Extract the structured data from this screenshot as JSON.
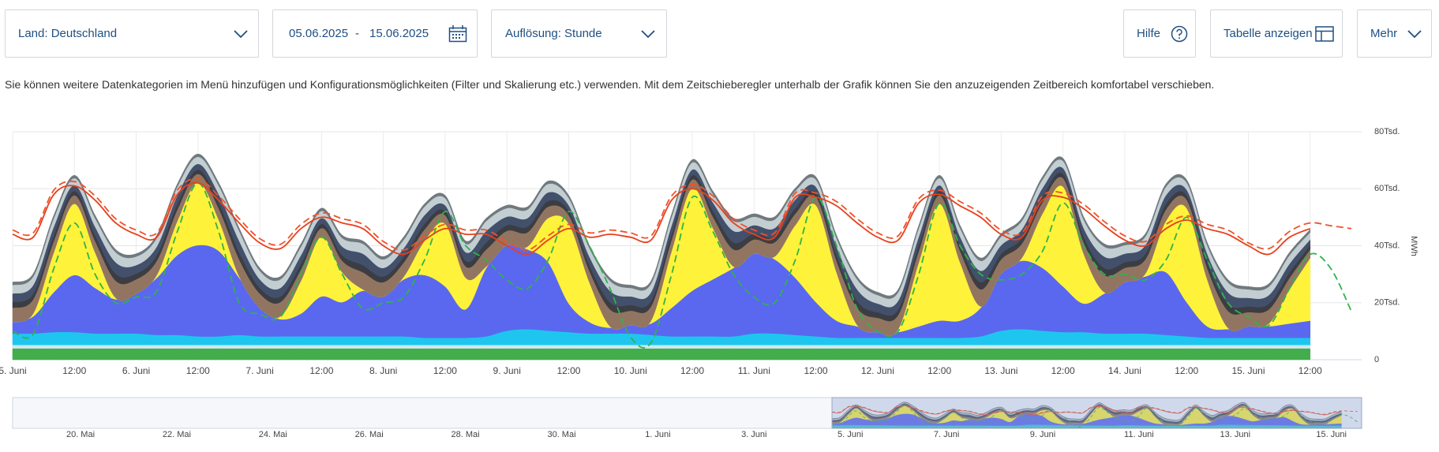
{
  "controls": {
    "country": "Land: Deutschland",
    "date_from": "05.06.2025",
    "date_separator": "-",
    "date_to": "15.06.2025",
    "resolution": "Auflösung: Stunde",
    "help": "Hilfe",
    "table": "Tabelle anzeigen",
    "more": "Mehr"
  },
  "description": "Sie können weitere Datenkategorien im Menü hinzufügen und Konfigurationsmöglichkeiten (Filter und Skalierung etc.) verwenden. Mit dem Zeitschieberegler unterhalb der Grafik können Sie den anzuzeigenden Zeitbereich komfortabel verschieben.",
  "chart_data": {
    "type": "area",
    "stacked": true,
    "grid": true,
    "y_label": "MWh",
    "xlim": [
      0,
      262
    ],
    "ylim": [
      0,
      80000
    ],
    "yticks": [
      0,
      {
        "value": 20000,
        "label": "20Tsd."
      },
      {
        "value": 40000,
        "label": "40Tsd."
      },
      {
        "value": 60000,
        "label": "60Tsd."
      },
      {
        "value": 80000,
        "label": "80Tsd."
      }
    ],
    "xticks": [
      {
        "value": 0,
        "label": "5. Juni"
      },
      {
        "value": 12,
        "label": "12:00"
      },
      {
        "value": 24,
        "label": "6. Juni"
      },
      {
        "value": 36,
        "label": "12:00"
      },
      {
        "value": 48,
        "label": "7. Juni"
      },
      {
        "value": 60,
        "label": "12:00"
      },
      {
        "value": 72,
        "label": "8. Juni"
      },
      {
        "value": 84,
        "label": "12:00"
      },
      {
        "value": 96,
        "label": "9. Juni"
      },
      {
        "value": 108,
        "label": "12:00"
      },
      {
        "value": 120,
        "label": "10. Juni"
      },
      {
        "value": 132,
        "label": "12:00"
      },
      {
        "value": 144,
        "label": "11. Juni"
      },
      {
        "value": 156,
        "label": "12:00"
      },
      {
        "value": 168,
        "label": "12. Juni"
      },
      {
        "value": 180,
        "label": "12:00"
      },
      {
        "value": 192,
        "label": "13. Juni"
      },
      {
        "value": 204,
        "label": "12:00"
      },
      {
        "value": 216,
        "label": "14. Juni"
      },
      {
        "value": 228,
        "label": "12:00"
      },
      {
        "value": 240,
        "label": "15. Juni"
      },
      {
        "value": 252,
        "label": "12:00"
      }
    ],
    "x": [
      0,
      4,
      8,
      12,
      16,
      20,
      24,
      28,
      32,
      36,
      40,
      44,
      48,
      52,
      56,
      60,
      64,
      68,
      72,
      76,
      80,
      84,
      88,
      92,
      96,
      100,
      104,
      108,
      112,
      116,
      120,
      124,
      128,
      132,
      136,
      140,
      144,
      148,
      152,
      156,
      160,
      164,
      168,
      172,
      176,
      180,
      184,
      188,
      192,
      196,
      200,
      204,
      208,
      212,
      216,
      220,
      224,
      228,
      232,
      236,
      240,
      244,
      248,
      252,
      256,
      260
    ],
    "series": [
      {
        "color": "#43ad4b",
        "values": [
          4000,
          4000,
          4000,
          4000,
          4000,
          4000,
          4000,
          4000,
          4000,
          4000,
          4000,
          4000,
          4000,
          4000,
          4000,
          4000,
          4000,
          4000,
          4000,
          4000,
          4000,
          4000,
          4000,
          4000,
          4000,
          4000,
          4000,
          4000,
          4000,
          4000,
          4000,
          4000,
          4000,
          4000,
          4000,
          4000,
          4000,
          4000,
          4000,
          4000,
          4000,
          4000,
          4000,
          4000,
          4000,
          4000,
          4000,
          4000,
          4000,
          4000,
          4000,
          4000,
          4000,
          4000,
          4000,
          4000,
          4000,
          4000,
          4000,
          4000,
          4000,
          4000,
          4000,
          4000,
          null,
          null
        ]
      },
      {
        "color": "#cfe7ef",
        "values": [
          1200,
          1200,
          1200,
          1200,
          1200,
          1200,
          1200,
          1200,
          1200,
          1200,
          1200,
          1200,
          1200,
          1200,
          1200,
          1200,
          1200,
          1200,
          1200,
          1200,
          1200,
          1200,
          1200,
          1200,
          1200,
          1200,
          1200,
          1200,
          1200,
          1200,
          1200,
          1200,
          1200,
          1200,
          1200,
          1200,
          1200,
          1200,
          1200,
          1200,
          1200,
          1200,
          1200,
          1200,
          1200,
          1200,
          1200,
          1200,
          1200,
          1200,
          1200,
          1200,
          1200,
          1200,
          1200,
          1200,
          1200,
          1200,
          1200,
          1200,
          1200,
          1200,
          1200,
          1200,
          null,
          null
        ]
      },
      {
        "color": "#1ec6ef",
        "values": [
          4000,
          4000,
          4500,
          4500,
          4000,
          4000,
          4000,
          3500,
          3500,
          3000,
          3000,
          3500,
          3000,
          3000,
          3000,
          3000,
          3000,
          3000,
          3000,
          3000,
          2500,
          2500,
          2500,
          3000,
          5000,
          5500,
          5000,
          4500,
          4000,
          4000,
          4000,
          3500,
          3000,
          3000,
          3000,
          3000,
          4000,
          4000,
          3500,
          3000,
          2500,
          2500,
          2500,
          2500,
          2500,
          2500,
          2500,
          3000,
          5000,
          5500,
          5000,
          4500,
          4500,
          4000,
          4000,
          4000,
          3500,
          3000,
          2500,
          2500,
          2500,
          2500,
          2500,
          2500,
          null,
          null
        ]
      },
      {
        "color": "#5a68ef",
        "values": [
          4000,
          6000,
          14000,
          20000,
          16000,
          12000,
          14000,
          20000,
          28000,
          32000,
          30000,
          20000,
          10000,
          6000,
          8000,
          14000,
          12000,
          16000,
          14000,
          20000,
          22000,
          18000,
          10000,
          24000,
          30000,
          28000,
          24000,
          10000,
          4000,
          2000,
          3000,
          4000,
          10000,
          16000,
          20000,
          24000,
          28000,
          26000,
          20000,
          12000,
          6000,
          4000,
          2000,
          2000,
          4000,
          6000,
          6000,
          10000,
          20000,
          24000,
          22000,
          16000,
          10000,
          14000,
          18000,
          20000,
          22000,
          12000,
          4000,
          3000,
          4000,
          4000,
          5000,
          6000,
          null,
          null
        ]
      },
      {
        "color": "#fff23a",
        "values": [
          0,
          1000,
          14000,
          25000,
          12500,
          500,
          0,
          1000,
          12000,
          22000,
          11000,
          500,
          0,
          1000,
          11500,
          21000,
          10500,
          500,
          0,
          1000,
          12000,
          22000,
          11000,
          500,
          0,
          1000,
          15500,
          28000,
          14000,
          500,
          0,
          1000,
          20000,
          36000,
          18000,
          500,
          0,
          1000,
          18500,
          34000,
          17000,
          500,
          0,
          1000,
          22500,
          41000,
          20500,
          500,
          0,
          1000,
          19000,
          35000,
          17500,
          500,
          0,
          1000,
          18000,
          33000,
          16500,
          500,
          0,
          1000,
          12000,
          22000,
          null,
          null
        ]
      },
      {
        "color": "#927561",
        "values": [
          5000,
          5000,
          4000,
          3000,
          4000,
          6000,
          5000,
          5000,
          4000,
          3000,
          4000,
          6000,
          5000,
          5000,
          4000,
          3000,
          4000,
          6000,
          5000,
          5000,
          4000,
          3000,
          4000,
          6000,
          5000,
          5000,
          4000,
          3000,
          4000,
          6000,
          5000,
          5000,
          4000,
          3000,
          4000,
          6000,
          5000,
          5000,
          4000,
          3000,
          4000,
          6000,
          5000,
          5000,
          4000,
          3000,
          4000,
          6000,
          5000,
          5000,
          4000,
          3000,
          4000,
          6000,
          5000,
          5000,
          4000,
          3000,
          4000,
          6000,
          5000,
          5000,
          4000,
          3000,
          null,
          null
        ]
      },
      {
        "color": "#3b3d42",
        "values": [
          2000,
          2000,
          2000,
          1500,
          2000,
          2500,
          2000,
          2000,
          2000,
          1500,
          2000,
          2500,
          2000,
          2000,
          2000,
          1500,
          2000,
          2500,
          2000,
          2000,
          2000,
          1500,
          2000,
          2500,
          2000,
          2000,
          2000,
          1500,
          2000,
          2500,
          2000,
          2000,
          2000,
          1500,
          2000,
          2500,
          2000,
          2000,
          2000,
          1500,
          2000,
          2500,
          2000,
          2000,
          2000,
          1500,
          2000,
          2500,
          2000,
          2000,
          2000,
          1500,
          2000,
          2500,
          2000,
          2000,
          2000,
          1500,
          2000,
          2500,
          2000,
          2000,
          2000,
          1500,
          null,
          null
        ]
      },
      {
        "color": "#43506b",
        "values": [
          3000,
          3000,
          3000,
          2000,
          3000,
          4000,
          3000,
          3000,
          3000,
          2000,
          3000,
          4000,
          3000,
          3000,
          3000,
          2000,
          3000,
          4000,
          3000,
          3000,
          3000,
          2000,
          3000,
          4000,
          3000,
          3000,
          3000,
          2000,
          3000,
          4000,
          3000,
          3000,
          3000,
          2000,
          3000,
          4000,
          3000,
          3000,
          3000,
          2000,
          3000,
          4000,
          3000,
          3000,
          3000,
          2000,
          3000,
          4000,
          3000,
          3000,
          3000,
          2000,
          3000,
          4000,
          3000,
          3000,
          3000,
          2000,
          3000,
          4000,
          3000,
          3000,
          3000,
          2000,
          null,
          null
        ]
      },
      {
        "color": "#c3ced3",
        "values": [
          3000,
          3000,
          3000,
          2500,
          3000,
          3500,
          3000,
          3000,
          3000,
          2500,
          3000,
          3500,
          3000,
          3000,
          3000,
          2500,
          3000,
          3500,
          3000,
          3000,
          3000,
          2500,
          3000,
          3500,
          3000,
          3000,
          3000,
          2500,
          3000,
          3500,
          3000,
          3000,
          3000,
          2500,
          3000,
          3500,
          3000,
          3000,
          3000,
          2500,
          3000,
          3500,
          3000,
          3000,
          3000,
          2500,
          3000,
          3500,
          3000,
          3000,
          3000,
          2500,
          3000,
          3500,
          3000,
          3000,
          3000,
          2500,
          3000,
          3500,
          3000,
          3000,
          3000,
          2500,
          null,
          null
        ]
      },
      {
        "color": "#6f797e",
        "values": [
          1000,
          1000,
          1000,
          1000,
          1000,
          1000,
          1000,
          1000,
          1000,
          1000,
          1000,
          1000,
          1000,
          1000,
          1000,
          1000,
          1000,
          1000,
          1000,
          1000,
          1000,
          1000,
          1000,
          1000,
          1000,
          1000,
          1000,
          1000,
          1000,
          1000,
          1000,
          1000,
          1000,
          1000,
          1000,
          1000,
          1000,
          1000,
          1000,
          1000,
          1000,
          1000,
          1000,
          1000,
          1000,
          1000,
          1000,
          1000,
          1000,
          1000,
          1000,
          1000,
          1000,
          1000,
          1000,
          1000,
          1000,
          1000,
          1000,
          1000,
          1000,
          1000,
          1000,
          1000,
          null,
          null
        ]
      },
      {
        "type": "line",
        "color": "#2fb34a",
        "dashed": true,
        "values": [
          10000,
          9000,
          32000,
          48000,
          30000,
          20000,
          22000,
          24000,
          45000,
          62000,
          45000,
          20000,
          16000,
          15000,
          30000,
          43000,
          30000,
          18000,
          20000,
          22000,
          35000,
          52000,
          40000,
          35000,
          28000,
          25000,
          35000,
          52000,
          40000,
          25000,
          8000,
          6000,
          30000,
          57000,
          45000,
          30000,
          22000,
          20000,
          35000,
          57000,
          40000,
          18000,
          10000,
          10000,
          30000,
          55000,
          40000,
          30000,
          28000,
          30000,
          38000,
          55000,
          40000,
          30000,
          30000,
          28000,
          35000,
          50000,
          35000,
          20000,
          15000,
          12000,
          25000,
          37000,
          32000,
          17000
        ]
      },
      {
        "type": "line",
        "color": "#f0522a",
        "dashed": true,
        "values": [
          45500,
          44500,
          59500,
          62500,
          57500,
          49500,
          45500,
          44500,
          59500,
          63500,
          57500,
          49500,
          42500,
          40500,
          47500,
          51500,
          49500,
          47500,
          41500,
          38500,
          43500,
          47500,
          45500,
          45500,
          41500,
          38500,
          43500,
          47500,
          44500,
          45500,
          44500,
          43500,
          57500,
          61500,
          57500,
          49500,
          45500,
          44500,
          58500,
          58500,
          55500,
          49500,
          44500,
          43500,
          56500,
          59500,
          55500,
          51500,
          45500,
          44500,
          57500,
          58500,
          54500,
          48500,
          43500,
          41500,
          47500,
          50500,
          47500,
          45500,
          41000,
          39000,
          45000,
          48000,
          47000,
          46000
        ]
      },
      {
        "type": "line",
        "color": "#e8401c",
        "values": [
          44000,
          43000,
          58000,
          61000,
          56000,
          48000,
          44000,
          43000,
          58000,
          62000,
          56000,
          48000,
          41000,
          39000,
          46000,
          50000,
          48000,
          46000,
          40000,
          37000,
          42000,
          46000,
          44000,
          44000,
          40000,
          37000,
          42000,
          46000,
          43000,
          44000,
          43000,
          42000,
          56000,
          60000,
          56000,
          48000,
          44000,
          43000,
          57000,
          57000,
          54000,
          48000,
          43000,
          42000,
          55000,
          58000,
          54000,
          50000,
          44000,
          43000,
          56000,
          57000,
          53000,
          47000,
          42000,
          40000,
          46000,
          49000,
          46000,
          44000,
          40000,
          37000,
          43000,
          46000,
          null,
          null
        ]
      }
    ]
  },
  "navigator": {
    "labels": [
      "20. Mai",
      "22. Mai",
      "24. Mai",
      "26. Mai",
      "28. Mai",
      "30. Mai",
      "1. Juni",
      "3. Juni",
      "5. Juni",
      "7. Juni",
      "9. Juni",
      "11. Juni",
      "13. Juni",
      "15. Juni"
    ]
  }
}
